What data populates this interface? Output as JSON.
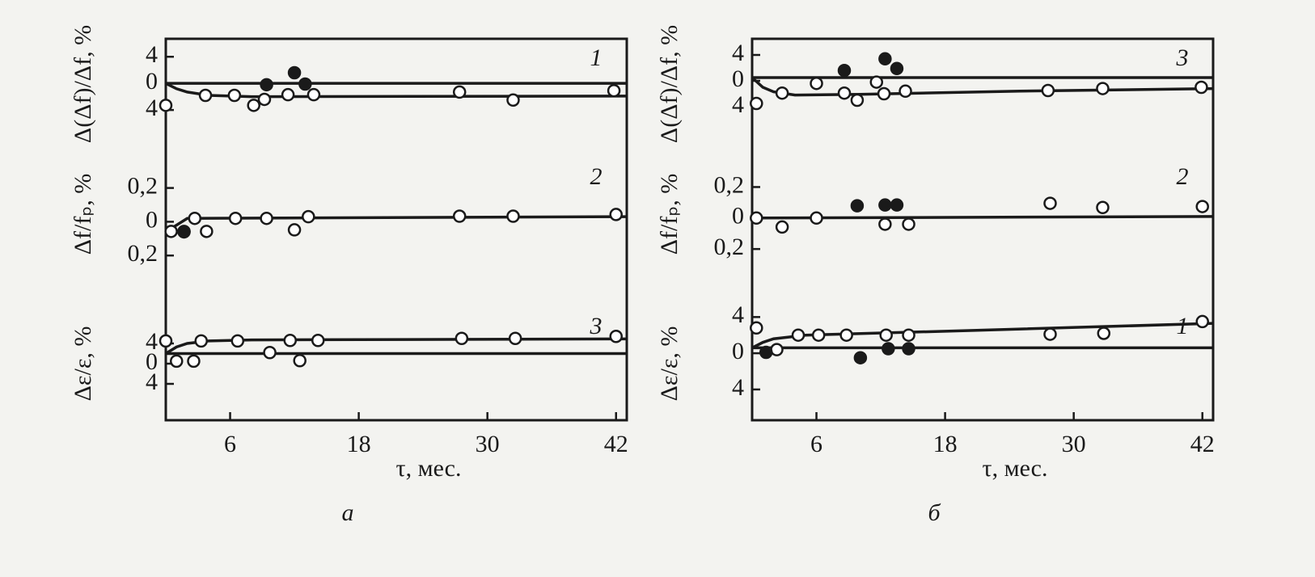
{
  "chart_data": [
    {
      "type": "scatter",
      "annotation": "1",
      "ylabel": "Δ(Δf)/Δf, %",
      "xlim": [
        0,
        43
      ],
      "ylim": [
        -6.9,
        6.7
      ],
      "yticks": [
        4,
        0,
        {
          "value": -4,
          "label": "4"
        }
      ],
      "series": [
        {
          "type": "line",
          "color": "#1a1a1a",
          "x": [
            0,
            43
          ],
          "values": [
            0,
            0
          ]
        },
        {
          "type": "line",
          "color": "#1a1a1a",
          "x": [
            0,
            1,
            2,
            4,
            8,
            43
          ],
          "values": [
            0,
            -0.8,
            -1.3,
            -1.8,
            -2,
            -1.9
          ]
        },
        {
          "type": "scatter",
          "color": "#1a1a1a",
          "fill": "#ffffff",
          "x": [
            0,
            3.7,
            6.4,
            8.2,
            9.2,
            11.4,
            13.8,
            27.4,
            32.4,
            41.8
          ],
          "values": [
            -3.3,
            -1.8,
            -1.8,
            -3.3,
            -2.4,
            -1.7,
            -1.7,
            -1.3,
            -2.5,
            -1.1
          ]
        },
        {
          "type": "scatter",
          "color": "#1a1a1a",
          "fill": "#1a1a1a",
          "x": [
            9.4,
            12,
            13
          ],
          "values": [
            -0.2,
            1.6,
            -0.1
          ]
        }
      ]
    },
    {
      "type": "scatter",
      "annotation": "2",
      "ylabel": "Δf/fₚ, %",
      "xlim": [
        0,
        43
      ],
      "ylim": [
        -0.29,
        0.38
      ],
      "yticks": [
        {
          "value": 0.2,
          "label": "0,2"
        },
        0,
        {
          "value": -0.2,
          "label": "0,2"
        }
      ],
      "series": [
        {
          "type": "line",
          "color": "#1a1a1a",
          "x": [
            0,
            2,
            43
          ],
          "values": [
            -0.06,
            0.02,
            0.03
          ]
        },
        {
          "type": "scatter",
          "color": "#1a1a1a",
          "fill": "#ffffff",
          "x": [
            0.5,
            1.7,
            2.7,
            3.8,
            6.5,
            9.4,
            12,
            13.3,
            27.4,
            32.4,
            42
          ],
          "values": [
            -0.057,
            -0.057,
            0.02,
            -0.057,
            0.02,
            0.02,
            -0.048,
            0.03,
            0.033,
            0.033,
            0.043
          ]
        },
        {
          "type": "scatter",
          "color": "#1a1a1a",
          "fill": "#1a1a1a",
          "x": [
            1.7
          ],
          "values": [
            -0.06
          ]
        }
      ]
    },
    {
      "type": "scatter",
      "annotation": "3",
      "ylabel": "Δε/ε, %",
      "xlim": [
        0,
        43
      ],
      "ylim": [
        -11.2,
        11.2
      ],
      "yticks": [
        4,
        0,
        {
          "value": -4,
          "label": "4"
        }
      ],
      "xticks": [
        6,
        18,
        30,
        42
      ],
      "xlabel": "τ, мес.",
      "panel_label": "а",
      "series": [
        {
          "type": "line",
          "color": "#1a1a1a",
          "x": [
            0,
            43
          ],
          "values": [
            2,
            2
          ]
        },
        {
          "type": "line",
          "color": "#1a1a1a",
          "x": [
            0,
            1,
            2,
            4,
            8,
            43
          ],
          "values": [
            2,
            3.3,
            4,
            4.5,
            4.7,
            4.9
          ]
        },
        {
          "type": "scatter",
          "color": "#1a1a1a",
          "fill": "#ffffff",
          "x": [
            0,
            1,
            2.6,
            3.3,
            6.7,
            9.7,
            11.6,
            12.5,
            14.2,
            27.6,
            32.6,
            42
          ],
          "values": [
            4.5,
            0.5,
            0.5,
            4.5,
            4.5,
            2.2,
            4.6,
            0.6,
            4.6,
            5,
            5,
            5.4
          ]
        }
      ]
    },
    {
      "type": "scatter",
      "annotation": "3",
      "ylabel": "Δ(Δf)/Δf, %",
      "xlim": [
        0,
        43
      ],
      "ylim": [
        -7.5,
        6.5
      ],
      "yticks": [
        4,
        0,
        {
          "value": -4,
          "label": "4"
        }
      ],
      "series": [
        {
          "type": "line",
          "color": "#1a1a1a",
          "x": [
            0,
            43
          ],
          "values": [
            0.5,
            0.5
          ]
        },
        {
          "type": "line",
          "color": "#1a1a1a",
          "x": [
            0,
            1,
            2,
            4,
            10,
            25,
            43
          ],
          "values": [
            0.5,
            -1,
            -1.7,
            -2.2,
            -2.1,
            -1.6,
            -1.2
          ]
        },
        {
          "type": "scatter",
          "color": "#1a1a1a",
          "fill": "#ffffff",
          "x": [
            0.4,
            2.8,
            6,
            8.6,
            9.8,
            11.6,
            12.3,
            14.3,
            27.6,
            32.7,
            41.9
          ],
          "values": [
            -3.5,
            -1.9,
            -0.4,
            -1.9,
            -3,
            -0.2,
            -2,
            -1.6,
            -1.5,
            -1.2,
            -1
          ]
        },
        {
          "type": "scatter",
          "color": "#1a1a1a",
          "fill": "#1a1a1a",
          "x": [
            8.6,
            12.4,
            13.5
          ],
          "values": [
            1.6,
            3.4,
            1.9
          ]
        }
      ]
    },
    {
      "type": "scatter",
      "annotation": "2",
      "ylabel": "Δf/fₚ, %",
      "xlim": [
        0,
        43
      ],
      "ylim": [
        -0.34,
        0.39
      ],
      "yticks": [
        {
          "value": 0.2,
          "label": "0,2"
        },
        0,
        {
          "value": -0.2,
          "label": "0,2"
        }
      ],
      "series": [
        {
          "type": "line",
          "color": "#1a1a1a",
          "x": [
            0,
            43
          ],
          "values": [
            0,
            0.01
          ]
        },
        {
          "type": "scatter",
          "color": "#1a1a1a",
          "fill": "#ffffff",
          "x": [
            0.4,
            2.8,
            6,
            12.4,
            14.6,
            27.8,
            32.7,
            42
          ],
          "values": [
            0,
            -0.058,
            0,
            -0.04,
            -0.04,
            0.095,
            0.068,
            0.074
          ]
        },
        {
          "type": "scatter",
          "color": "#1a1a1a",
          "fill": "#1a1a1a",
          "x": [
            9.8,
            12.4,
            13.5
          ],
          "values": [
            0.079,
            0.084,
            0.084
          ]
        }
      ]
    },
    {
      "type": "scatter",
      "annotation": "1",
      "ylabel": "Δε/ε, %",
      "xlim": [
        0,
        43
      ],
      "ylim": [
        -7.4,
        5.1
      ],
      "yticks": [
        4,
        0,
        {
          "value": -4,
          "label": "4"
        }
      ],
      "xticks": [
        6,
        18,
        30,
        42
      ],
      "xlabel": "τ, мес.",
      "panel_label": "б",
      "series": [
        {
          "type": "line",
          "color": "#1a1a1a",
          "x": [
            0,
            43
          ],
          "values": [
            0.6,
            0.6
          ]
        },
        {
          "type": "line",
          "color": "#1a1a1a",
          "x": [
            0,
            1,
            2,
            5,
            20,
            43
          ],
          "values": [
            0.6,
            1.2,
            1.6,
            2,
            2.5,
            3.3
          ]
        },
        {
          "type": "scatter",
          "color": "#1a1a1a",
          "fill": "#ffffff",
          "x": [
            0.4,
            2.3,
            4.3,
            6.2,
            8.8,
            12.5,
            14.6,
            27.8,
            32.8,
            42
          ],
          "values": [
            2.8,
            0.4,
            2,
            2,
            2,
            2,
            2,
            2.1,
            2.2,
            3.5
          ]
        },
        {
          "type": "scatter",
          "color": "#1a1a1a",
          "fill": "#1a1a1a",
          "x": [
            1.3,
            10.1,
            12.7,
            14.6
          ],
          "values": [
            0.1,
            -0.5,
            0.5,
            0.5
          ]
        }
      ]
    }
  ]
}
